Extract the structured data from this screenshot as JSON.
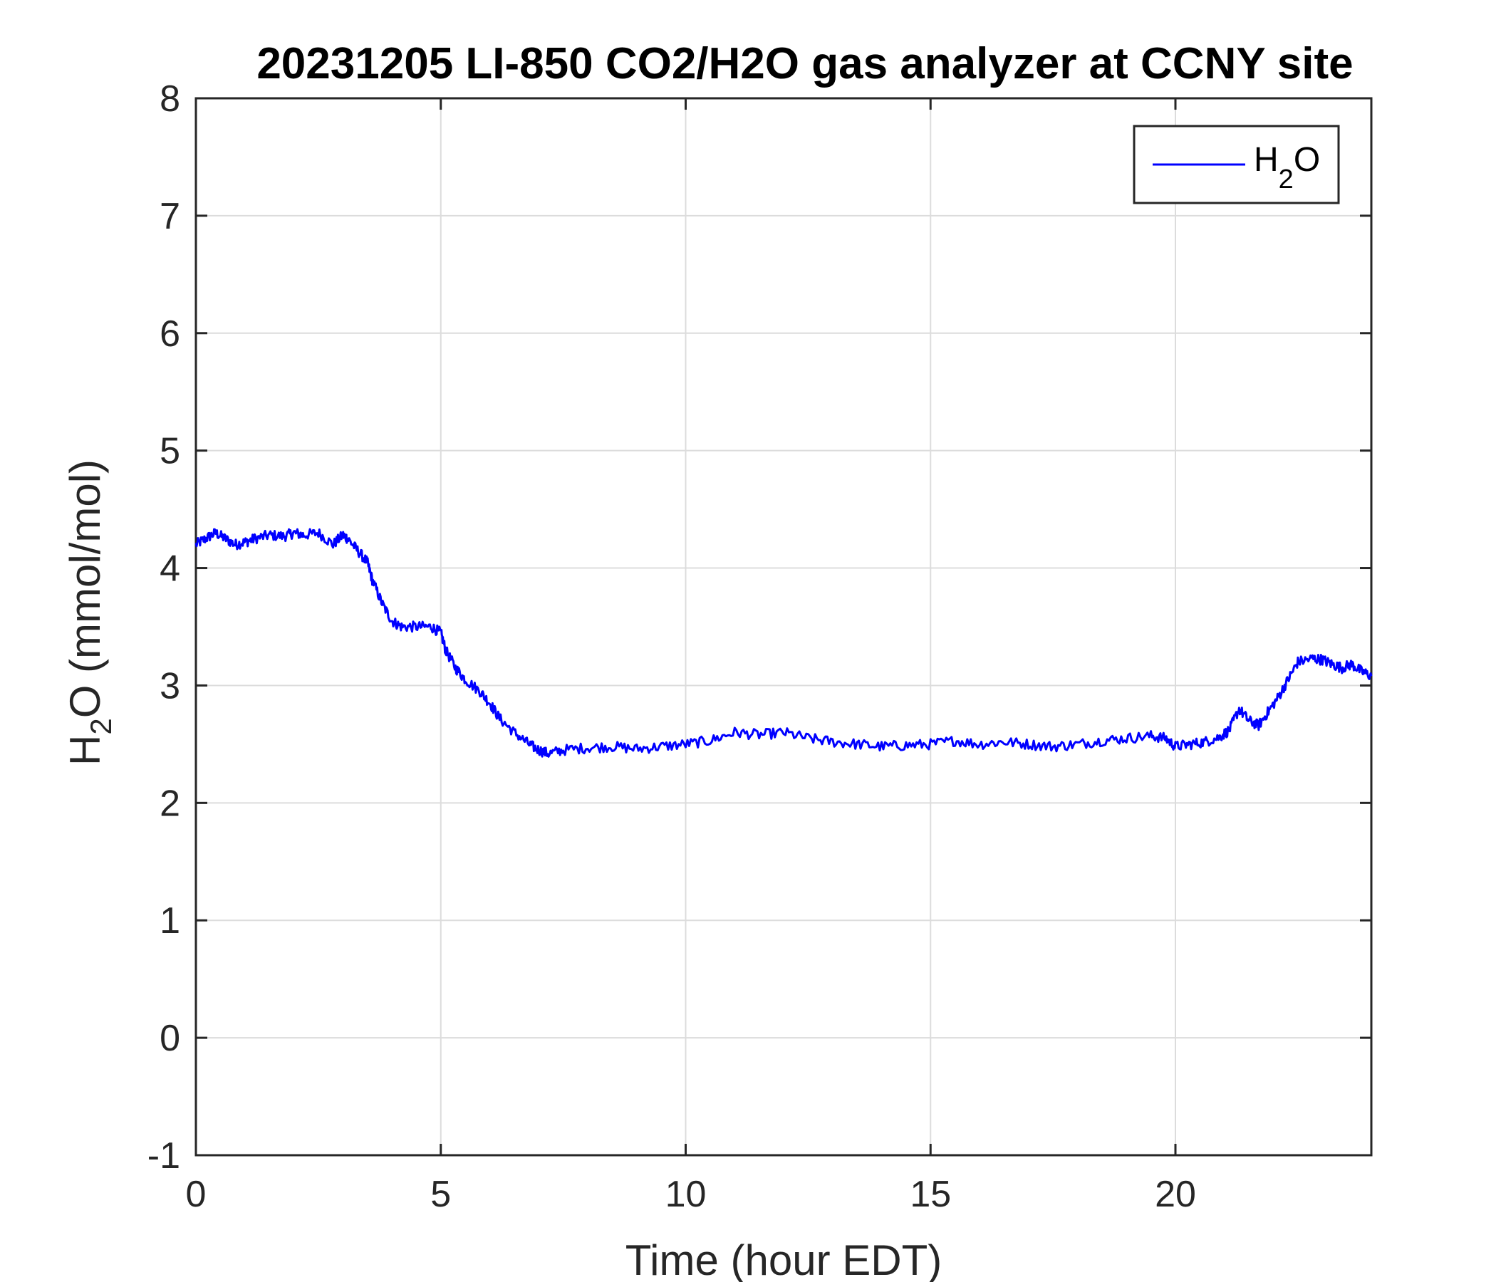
{
  "chart_data": {
    "type": "line",
    "title": "20231205 LI-850 CO2/H2O gas analyzer at CCNY site",
    "xlabel": "Time (hour EDT)",
    "ylabel": {
      "base": "H",
      "sub": "2",
      "rest": "O (mmol/mol)"
    },
    "xlim": [
      0,
      24
    ],
    "ylim": [
      -1,
      8
    ],
    "xticks": [
      0,
      5,
      10,
      15,
      20
    ],
    "yticks": [
      -1,
      0,
      1,
      2,
      3,
      4,
      5,
      6,
      7,
      8
    ],
    "grid": true,
    "legend_position": "top-right",
    "line_color": "#0000ff",
    "series": [
      {
        "name": {
          "base": "H",
          "sub": "2",
          "rest": "O"
        },
        "x": [
          0,
          0.2,
          0.4,
          0.6,
          0.8,
          1.0,
          1.2,
          1.5,
          1.8,
          2.0,
          2.2,
          2.5,
          2.8,
          3.0,
          3.1,
          3.3,
          3.5,
          3.6,
          3.8,
          4.0,
          4.2,
          4.5,
          4.8,
          5.0,
          5.1,
          5.3,
          5.5,
          5.8,
          6.0,
          6.2,
          6.5,
          6.8,
          7.0,
          7.2,
          7.5,
          8.0,
          8.5,
          9.0,
          9.5,
          10.0,
          10.5,
          11.0,
          11.5,
          12.0,
          12.5,
          13.0,
          13.5,
          14.0,
          14.5,
          15.0,
          15.5,
          16.0,
          16.5,
          17.0,
          17.5,
          18.0,
          18.5,
          19.0,
          19.5,
          19.8,
          20.0,
          20.3,
          20.6,
          20.9,
          21.1,
          21.3,
          21.5,
          21.7,
          21.9,
          22.1,
          22.3,
          22.5,
          22.8,
          23.0,
          23.2,
          23.4,
          23.6,
          23.8,
          24.0
        ],
        "y": [
          4.2,
          4.25,
          4.3,
          4.25,
          4.2,
          4.22,
          4.25,
          4.28,
          4.27,
          4.3,
          4.28,
          4.3,
          4.2,
          4.28,
          4.25,
          4.15,
          4.05,
          3.9,
          3.7,
          3.55,
          3.5,
          3.5,
          3.5,
          3.45,
          3.3,
          3.15,
          3.05,
          2.95,
          2.85,
          2.72,
          2.6,
          2.5,
          2.45,
          2.42,
          2.45,
          2.47,
          2.48,
          2.46,
          2.48,
          2.5,
          2.53,
          2.6,
          2.58,
          2.6,
          2.55,
          2.52,
          2.5,
          2.48,
          2.49,
          2.5,
          2.53,
          2.5,
          2.52,
          2.5,
          2.48,
          2.5,
          2.53,
          2.55,
          2.57,
          2.55,
          2.48,
          2.5,
          2.52,
          2.56,
          2.62,
          2.8,
          2.7,
          2.66,
          2.78,
          2.9,
          3.05,
          3.2,
          3.23,
          3.22,
          3.18,
          3.15,
          3.18,
          3.12,
          3.08
        ]
      }
    ]
  }
}
